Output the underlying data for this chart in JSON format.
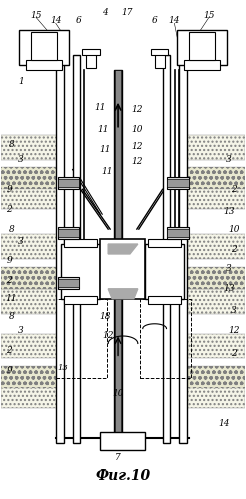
{
  "title": "Фиг.10",
  "title_fontsize": 10,
  "bg_color": "#ffffff",
  "line_color": "#000000",
  "fig_width": 2.46,
  "fig_height": 4.99,
  "dpi": 100
}
